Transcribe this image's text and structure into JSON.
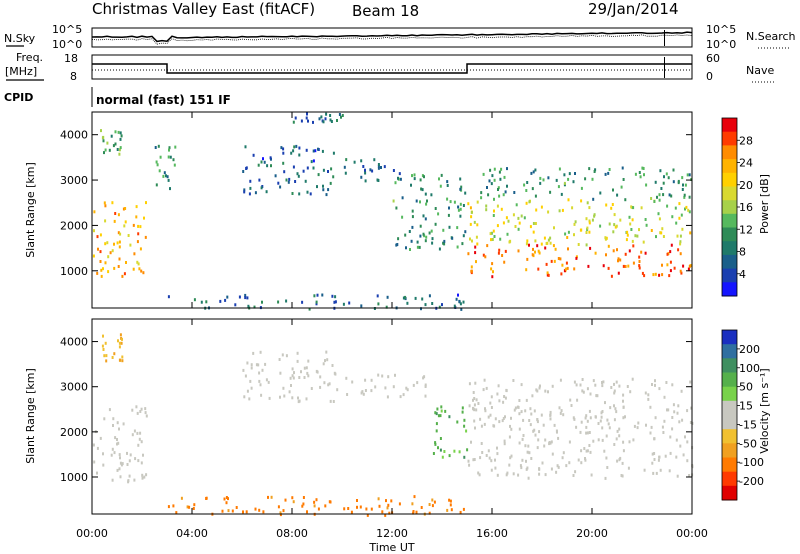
{
  "header": {
    "station": "Christmas Valley East (fitACF)",
    "beam": "Beam 18",
    "date": "29/Jan/2014"
  },
  "top_panels": {
    "nsky_label": "N.Sky",
    "nsearch_label": "N.Search",
    "noise_tick_top": "10^5",
    "noise_tick_bottom": "10^0",
    "freq_label_line1": "Freq.",
    "freq_label_line2": "[MHz]",
    "freq_tick_top": "18",
    "freq_tick_bottom": "8",
    "nave_label": "Nave",
    "nave_tick_top": "60",
    "nave_tick_bottom": "0",
    "cpid_label": "CPID",
    "cpid_value": "normal (fast) 151 IF"
  },
  "x_axis": {
    "ticks": [
      "00:00",
      "04:00",
      "08:00",
      "12:00",
      "16:00",
      "20:00",
      "00:00"
    ],
    "label": "Time UT"
  },
  "power_colorbar": {
    "label": "Power [dB]",
    "ticks": [
      "28",
      "24",
      "20",
      "16",
      "12",
      "8",
      "4"
    ],
    "colors": [
      "#e8000b",
      "#ff3b00",
      "#ff8c00",
      "#ffb300",
      "#ffd000",
      "#d9d930",
      "#a7d14a",
      "#56b95e",
      "#2e8b57",
      "#1f7a6a",
      "#1a5f8a",
      "#1a3fb0",
      "#1515ff"
    ]
  },
  "velocity_colorbar": {
    "label": "Velocity [m s⁻¹]",
    "ticks": [
      "200",
      "100",
      "50",
      "15",
      "-15",
      "-50",
      "-100",
      "-200"
    ],
    "colors": [
      "#1a2fc0",
      "#2f6fa0",
      "#3f8f60",
      "#55b04b",
      "#78d24a",
      "#c8c8c0",
      "#c8c8c0",
      "#f0c030",
      "#f0a020",
      "#ff7a00",
      "#ff3a00",
      "#e00000"
    ]
  },
  "chart_data": [
    {
      "type": "heatmap",
      "title": "Power",
      "xlabel": "",
      "ylabel": "Slant Range [km]",
      "xlim_hours": [
        0,
        24
      ],
      "ylim_km": [
        180,
        4500
      ],
      "yticks": [
        "1000",
        "2000",
        "3000",
        "4000"
      ],
      "colorbar": "Power [dB]",
      "regions": [
        {
          "t0": 0.0,
          "t1": 2.2,
          "r0": 900,
          "r1": 2600,
          "power_db": 24
        },
        {
          "t0": 0.3,
          "t1": 1.2,
          "r0": 3500,
          "r1": 4200,
          "power_db": 12
        },
        {
          "t0": 2.5,
          "t1": 3.3,
          "r0": 2600,
          "r1": 3800,
          "power_db": 10
        },
        {
          "t0": 6.0,
          "t1": 9.8,
          "r0": 2700,
          "r1": 3800,
          "power_db": 6
        },
        {
          "t0": 8.0,
          "t1": 10.0,
          "r0": 4300,
          "r1": 4500,
          "power_db": 6
        },
        {
          "t0": 9.5,
          "t1": 12.5,
          "r0": 3000,
          "r1": 3500,
          "power_db": 6
        },
        {
          "t0": 12.0,
          "t1": 15.0,
          "r0": 1500,
          "r1": 3200,
          "power_db": 10
        },
        {
          "t0": 15.0,
          "t1": 24.0,
          "r0": 900,
          "r1": 1600,
          "power_db": 28
        },
        {
          "t0": 15.0,
          "t1": 24.0,
          "r0": 1600,
          "r1": 2600,
          "power_db": 18
        },
        {
          "t0": 15.5,
          "t1": 24.0,
          "r0": 2600,
          "r1": 3300,
          "power_db": 10
        },
        {
          "t0": 3.0,
          "t1": 15.0,
          "r0": 180,
          "r1": 500,
          "power_db": 6
        }
      ]
    },
    {
      "type": "heatmap",
      "title": "Velocity",
      "xlabel": "Time UT",
      "ylabel": "Slant Range [km]",
      "xlim_hours": [
        0,
        24
      ],
      "ylim_km": [
        180,
        4500
      ],
      "yticks": [
        "1000",
        "2000",
        "3000",
        "4000"
      ],
      "colorbar": "Velocity [m s⁻¹]",
      "regions": [
        {
          "t0": 0.0,
          "t1": 2.2,
          "r0": 900,
          "r1": 2600,
          "velocity_ms": 0
        },
        {
          "t0": 0.3,
          "t1": 1.2,
          "r0": 3600,
          "r1": 4200,
          "velocity_ms": -30
        },
        {
          "t0": 6.0,
          "t1": 9.8,
          "r0": 2700,
          "r1": 3800,
          "velocity_ms": 0
        },
        {
          "t0": 10.0,
          "t1": 13.5,
          "r0": 2800,
          "r1": 3300,
          "velocity_ms": 0
        },
        {
          "t0": 13.5,
          "t1": 15.0,
          "r0": 1400,
          "r1": 2600,
          "velocity_ms": 40
        },
        {
          "t0": 15.0,
          "t1": 24.0,
          "r0": 1000,
          "r1": 2400,
          "velocity_ms": 0
        },
        {
          "t0": 15.0,
          "t1": 24.0,
          "r0": 2400,
          "r1": 3200,
          "velocity_ms": 0
        },
        {
          "t0": 3.0,
          "t1": 15.0,
          "r0": 180,
          "r1": 600,
          "velocity_ms": -60
        }
      ]
    }
  ]
}
